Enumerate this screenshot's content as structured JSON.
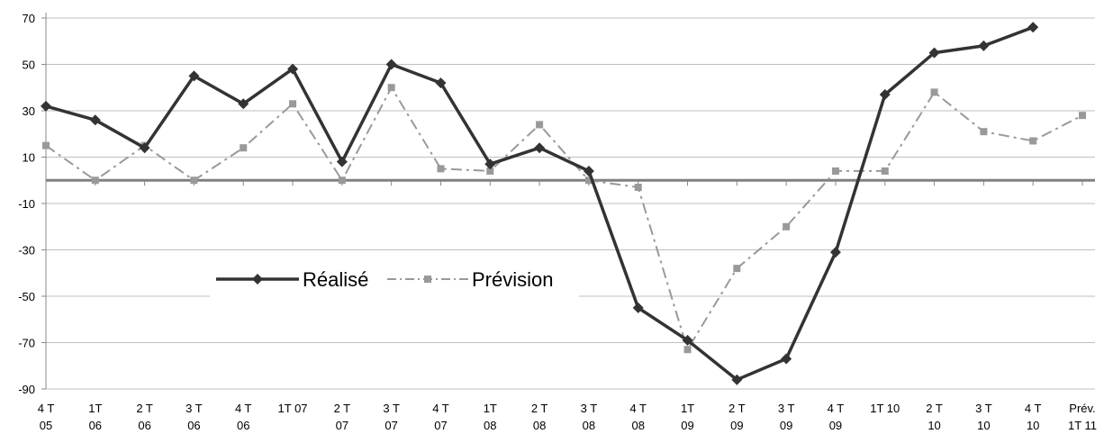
{
  "chart_data": {
    "type": "line",
    "title": "",
    "xlabel": "",
    "ylabel": "",
    "ylim": [
      -90,
      70
    ],
    "yticks": [
      -90,
      -70,
      -50,
      -30,
      -10,
      10,
      30,
      50,
      70
    ],
    "categories": [
      [
        "4 T",
        "05"
      ],
      [
        "1T",
        "06"
      ],
      [
        "2 T",
        "06"
      ],
      [
        "3 T",
        "06"
      ],
      [
        "4 T",
        "06"
      ],
      [
        "1T 07",
        ""
      ],
      [
        "2 T",
        "07"
      ],
      [
        "3 T",
        "07"
      ],
      [
        "4 T",
        "07"
      ],
      [
        "1T",
        "08"
      ],
      [
        "2 T",
        "08"
      ],
      [
        "3 T",
        "08"
      ],
      [
        "4 T",
        "08"
      ],
      [
        "1T",
        "09"
      ],
      [
        "2 T",
        "09"
      ],
      [
        "3 T",
        "09"
      ],
      [
        "4 T",
        "09"
      ],
      [
        "1T 10",
        ""
      ],
      [
        "2 T",
        "10"
      ],
      [
        "3 T",
        "10"
      ],
      [
        "4 T",
        "10"
      ],
      [
        "Prév.",
        "1T 11"
      ]
    ],
    "series": [
      {
        "name": "Réalisé",
        "color": "#333333",
        "style": "solid",
        "marker": "diamond",
        "values": [
          32,
          26,
          14,
          45,
          33,
          48,
          8,
          50,
          42,
          7,
          14,
          4,
          -55,
          -69,
          -86,
          -77,
          -31,
          37,
          55,
          58,
          66,
          null
        ]
      },
      {
        "name": "Prévision",
        "color": "#999999",
        "style": "dashdot",
        "marker": "square",
        "values": [
          15,
          0,
          15,
          0,
          14,
          33,
          0,
          40,
          5,
          4,
          24,
          0,
          -3,
          -73,
          -38,
          -20,
          4,
          4,
          38,
          21,
          17,
          28
        ]
      }
    ],
    "reference_line": 0,
    "grid": true,
    "legend": "center-left"
  }
}
